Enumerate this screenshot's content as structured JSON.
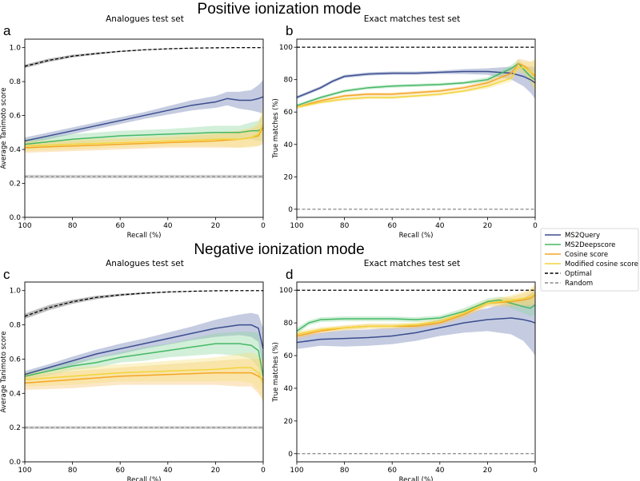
{
  "sections": [
    {
      "title": "Positive ionization mode"
    },
    {
      "title": "Negative ionization mode"
    }
  ],
  "legend": [
    {
      "name": "MS2Query",
      "color": "#3b4d8f",
      "style": "solid"
    },
    {
      "name": "MS2Deepscore",
      "color": "#45b865",
      "style": "solid"
    },
    {
      "name": "Cosine score",
      "color": "#f5a623",
      "style": "solid"
    },
    {
      "name": "Modified cosine score",
      "color": "#f2d43a",
      "style": "solid"
    },
    {
      "name": "Optimal",
      "color": "#000000",
      "style": "dashed"
    },
    {
      "name": "Random",
      "color": "#888888",
      "style": "dashed"
    }
  ],
  "chart_data": [
    {
      "id": "a",
      "type": "line",
      "letter": "a",
      "title": "Analogues test set",
      "xlabel": "Recall (%)",
      "ylabel": "Average Tanimoto score",
      "xlim": [
        100,
        0
      ],
      "ylim": [
        0,
        1.05
      ],
      "xticks": [
        100,
        80,
        60,
        40,
        20,
        0
      ],
      "xtick_labels": [
        "100",
        "80",
        "60",
        "40",
        "20",
        "0"
      ],
      "yticks": [
        0,
        0.2,
        0.4,
        0.6,
        0.8,
        1.0
      ],
      "ytick_labels": [
        "0.0",
        "0.2",
        "0.4",
        "0.6",
        "0.8",
        "1.0"
      ],
      "series": [
        {
          "name": "Optimal",
          "x": [
            100,
            90,
            80,
            70,
            60,
            50,
            40,
            30,
            20,
            10,
            0
          ],
          "values": [
            0.89,
            0.925,
            0.95,
            0.965,
            0.978,
            0.987,
            0.993,
            0.997,
            0.999,
            1.0,
            1.0
          ],
          "band": [
            0.01,
            0.01,
            0.008,
            0.006,
            0.004,
            0.003,
            0.002,
            0.001,
            0,
            0,
            0
          ]
        },
        {
          "name": "Random",
          "x": [
            100,
            0
          ],
          "values": [
            0.24,
            0.24
          ],
          "band": [
            0.01,
            0.01
          ]
        },
        {
          "name": "MS2Query",
          "x": [
            100,
            90,
            80,
            70,
            60,
            50,
            40,
            30,
            20,
            15,
            10,
            5,
            2,
            0
          ],
          "values": [
            0.45,
            0.48,
            0.51,
            0.54,
            0.57,
            0.6,
            0.63,
            0.66,
            0.68,
            0.7,
            0.69,
            0.69,
            0.7,
            0.71
          ],
          "band": [
            0.02,
            0.02,
            0.02,
            0.02,
            0.02,
            0.02,
            0.025,
            0.03,
            0.035,
            0.04,
            0.05,
            0.06,
            0.08,
            0.1
          ]
        },
        {
          "name": "MS2Deepscore",
          "x": [
            100,
            80,
            60,
            40,
            20,
            10,
            5,
            2,
            0
          ],
          "values": [
            0.43,
            0.46,
            0.48,
            0.49,
            0.5,
            0.5,
            0.51,
            0.51,
            0.53
          ],
          "band": [
            0.03,
            0.03,
            0.03,
            0.03,
            0.04,
            0.04,
            0.05,
            0.06,
            0.08
          ]
        },
        {
          "name": "Cosine score",
          "x": [
            100,
            80,
            60,
            40,
            20,
            10,
            5,
            2,
            0
          ],
          "values": [
            0.41,
            0.42,
            0.43,
            0.44,
            0.45,
            0.46,
            0.47,
            0.48,
            0.53
          ],
          "band": [
            0.03,
            0.03,
            0.03,
            0.03,
            0.04,
            0.05,
            0.05,
            0.06,
            0.1
          ]
        },
        {
          "name": "Modified cosine score",
          "x": [
            100,
            80,
            60,
            40,
            20,
            10,
            5,
            2,
            0
          ],
          "values": [
            0.42,
            0.43,
            0.44,
            0.45,
            0.46,
            0.46,
            0.47,
            0.49,
            0.55
          ],
          "band": [
            0.03,
            0.03,
            0.03,
            0.03,
            0.04,
            0.05,
            0.06,
            0.07,
            0.1
          ]
        }
      ]
    },
    {
      "id": "b",
      "type": "line",
      "letter": "b",
      "title": "Exact matches test set",
      "xlabel": "Recall (%)",
      "ylabel": "True matches (%)",
      "xlim": [
        100,
        0
      ],
      "ylim": [
        -5,
        105
      ],
      "xticks": [
        100,
        80,
        60,
        40,
        20,
        0
      ],
      "xtick_labels": [
        "100",
        "80",
        "60",
        "40",
        "20",
        "0"
      ],
      "yticks": [
        0,
        20,
        40,
        60,
        80,
        100
      ],
      "ytick_labels": [
        "0",
        "20",
        "40",
        "60",
        "80",
        "100"
      ],
      "series": [
        {
          "name": "Optimal",
          "x": [
            100,
            0
          ],
          "values": [
            100,
            100
          ],
          "band": [
            0,
            0
          ]
        },
        {
          "name": "Random",
          "x": [
            100,
            0
          ],
          "values": [
            0,
            0
          ],
          "band": [
            0,
            0
          ]
        },
        {
          "name": "MS2Query",
          "x": [
            100,
            95,
            90,
            85,
            80,
            70,
            60,
            50,
            40,
            30,
            20,
            10,
            5,
            2,
            0
          ],
          "values": [
            69,
            72,
            75,
            79,
            82,
            83.5,
            84,
            84,
            84.5,
            85,
            85,
            84,
            82,
            80,
            78
          ],
          "band": [
            1,
            1,
            1,
            1,
            1,
            1,
            1,
            1,
            1,
            1.5,
            2,
            4,
            6,
            8,
            10
          ]
        },
        {
          "name": "MS2Deepscore",
          "x": [
            100,
            90,
            80,
            70,
            60,
            50,
            40,
            30,
            20,
            10,
            7,
            4,
            2,
            0
          ],
          "values": [
            64,
            69,
            73,
            75,
            76,
            76.5,
            77,
            78,
            80,
            87,
            90,
            85,
            82,
            80
          ],
          "band": [
            1,
            1,
            1,
            1,
            1,
            1,
            1,
            1,
            1.5,
            2,
            2.5,
            3,
            4,
            6
          ]
        },
        {
          "name": "Cosine score",
          "x": [
            100,
            90,
            80,
            70,
            60,
            50,
            40,
            30,
            20,
            10,
            7,
            4,
            2,
            0
          ],
          "values": [
            63,
            67,
            70,
            71,
            71,
            72,
            73,
            75,
            78,
            84,
            90,
            88,
            85,
            82
          ],
          "band": [
            1,
            1,
            1,
            1,
            1,
            1,
            1,
            1,
            1.5,
            2,
            3,
            4,
            6,
            10
          ]
        },
        {
          "name": "Modified cosine score",
          "x": [
            100,
            90,
            80,
            70,
            60,
            50,
            40,
            30,
            20,
            10,
            7,
            4,
            2,
            0
          ],
          "values": [
            63,
            66,
            68,
            69,
            69,
            70,
            71,
            73,
            76,
            81,
            88,
            87,
            85,
            83
          ],
          "band": [
            1,
            1,
            1,
            1,
            1,
            1,
            1,
            1,
            1.5,
            2,
            3,
            4,
            6,
            10
          ]
        }
      ]
    },
    {
      "id": "c",
      "type": "line",
      "letter": "c",
      "title": "Analogues test set",
      "xlabel": "Recall (%)",
      "ylabel": "Average Tanimoto score",
      "xlim": [
        100,
        0
      ],
      "ylim": [
        0,
        1.05
      ],
      "xticks": [
        100,
        80,
        60,
        40,
        20,
        0
      ],
      "xtick_labels": [
        "100",
        "80",
        "60",
        "40",
        "20",
        "0"
      ],
      "yticks": [
        0,
        0.2,
        0.4,
        0.6,
        0.8,
        1.0
      ],
      "ytick_labels": [
        "0.0",
        "0.2",
        "0.4",
        "0.6",
        "0.8",
        "1.0"
      ],
      "series": [
        {
          "name": "Optimal",
          "x": [
            100,
            90,
            80,
            70,
            60,
            50,
            40,
            30,
            20,
            10,
            0
          ],
          "values": [
            0.85,
            0.9,
            0.935,
            0.96,
            0.975,
            0.985,
            0.992,
            0.996,
            0.999,
            1.0,
            1.0
          ],
          "band": [
            0.015,
            0.015,
            0.012,
            0.01,
            0.007,
            0.005,
            0.003,
            0.002,
            0.001,
            0,
            0
          ]
        },
        {
          "name": "Random",
          "x": [
            100,
            0
          ],
          "values": [
            0.2,
            0.2
          ],
          "band": [
            0.008,
            0.008
          ]
        },
        {
          "name": "MS2Query",
          "x": [
            100,
            90,
            80,
            70,
            60,
            50,
            40,
            30,
            20,
            10,
            5,
            2,
            0
          ],
          "values": [
            0.51,
            0.55,
            0.59,
            0.63,
            0.66,
            0.69,
            0.72,
            0.75,
            0.78,
            0.8,
            0.8,
            0.78,
            0.66
          ],
          "band": [
            0.02,
            0.02,
            0.025,
            0.025,
            0.03,
            0.03,
            0.035,
            0.04,
            0.05,
            0.06,
            0.07,
            0.08,
            0.12
          ]
        },
        {
          "name": "MS2Deepscore",
          "x": [
            100,
            90,
            80,
            70,
            60,
            50,
            40,
            30,
            20,
            10,
            5,
            2,
            0
          ],
          "values": [
            0.5,
            0.53,
            0.56,
            0.58,
            0.61,
            0.63,
            0.65,
            0.67,
            0.69,
            0.69,
            0.68,
            0.65,
            0.5
          ],
          "band": [
            0.02,
            0.025,
            0.025,
            0.03,
            0.03,
            0.04,
            0.04,
            0.05,
            0.06,
            0.07,
            0.08,
            0.1,
            0.12
          ]
        },
        {
          "name": "Cosine score",
          "x": [
            100,
            80,
            60,
            40,
            20,
            10,
            5,
            2,
            0
          ],
          "values": [
            0.46,
            0.48,
            0.5,
            0.51,
            0.52,
            0.52,
            0.52,
            0.5,
            0.48
          ],
          "band": [
            0.04,
            0.05,
            0.05,
            0.06,
            0.07,
            0.08,
            0.08,
            0.1,
            0.12
          ]
        },
        {
          "name": "Modified cosine score",
          "x": [
            100,
            80,
            60,
            40,
            20,
            10,
            5,
            2,
            0
          ],
          "values": [
            0.48,
            0.5,
            0.52,
            0.53,
            0.54,
            0.55,
            0.55,
            0.52,
            0.46
          ],
          "band": [
            0.04,
            0.05,
            0.05,
            0.06,
            0.07,
            0.08,
            0.09,
            0.1,
            0.12
          ]
        }
      ]
    },
    {
      "id": "d",
      "type": "line",
      "letter": "d",
      "title": "Exact matches test set",
      "xlabel": "Recall (%)",
      "ylabel": "True matches (%)",
      "xlim": [
        100,
        0
      ],
      "ylim": [
        -5,
        105
      ],
      "xticks": [
        100,
        80,
        60,
        40,
        20,
        0
      ],
      "xtick_labels": [
        "100",
        "80",
        "60",
        "40",
        "20",
        "0"
      ],
      "yticks": [
        0,
        20,
        40,
        60,
        80,
        100
      ],
      "ytick_labels": [
        "0",
        "20",
        "40",
        "60",
        "80",
        "100"
      ],
      "series": [
        {
          "name": "Optimal",
          "x": [
            100,
            0
          ],
          "values": [
            100,
            100
          ],
          "band": [
            0,
            0
          ]
        },
        {
          "name": "Random",
          "x": [
            100,
            0
          ],
          "values": [
            0,
            0
          ],
          "band": [
            0,
            0
          ]
        },
        {
          "name": "MS2Query",
          "x": [
            100,
            90,
            80,
            70,
            60,
            50,
            40,
            30,
            20,
            10,
            5,
            2,
            0
          ],
          "values": [
            68,
            70,
            70.5,
            71,
            72,
            74,
            77,
            80,
            82,
            83,
            82,
            81,
            80
          ],
          "band": [
            4,
            4,
            5,
            5,
            5,
            5,
            5,
            6,
            7,
            10,
            13,
            17,
            20
          ]
        },
        {
          "name": "MS2Deepscore",
          "x": [
            100,
            95,
            90,
            80,
            70,
            60,
            50,
            40,
            30,
            20,
            15,
            10,
            5,
            2,
            0
          ],
          "values": [
            75,
            80,
            82,
            82.5,
            82.5,
            82.5,
            82,
            83,
            87,
            93,
            94,
            92,
            90,
            89,
            91
          ],
          "band": [
            2,
            1.5,
            1.5,
            1.5,
            1.5,
            1.5,
            1.5,
            1.5,
            2,
            2,
            2,
            3,
            4,
            5,
            6
          ]
        },
        {
          "name": "Cosine score",
          "x": [
            100,
            90,
            80,
            70,
            60,
            50,
            40,
            30,
            20,
            10,
            5,
            2,
            0
          ],
          "values": [
            72,
            75,
            77,
            78,
            78,
            78,
            80,
            85,
            92,
            93,
            94,
            95,
            97
          ],
          "band": [
            2,
            1.5,
            1.5,
            1.5,
            1.5,
            1.5,
            1.5,
            2,
            2,
            3,
            4,
            5,
            6
          ]
        },
        {
          "name": "Modified cosine score",
          "x": [
            100,
            90,
            80,
            70,
            60,
            50,
            40,
            30,
            20,
            10,
            5,
            2,
            0
          ],
          "values": [
            73,
            76,
            77,
            78,
            78,
            79,
            81,
            86,
            92,
            94,
            95,
            96,
            98
          ],
          "band": [
            2,
            1.5,
            1.5,
            1.5,
            1.5,
            1.5,
            1.5,
            2,
            2,
            3,
            4,
            5,
            6
          ]
        }
      ]
    }
  ]
}
